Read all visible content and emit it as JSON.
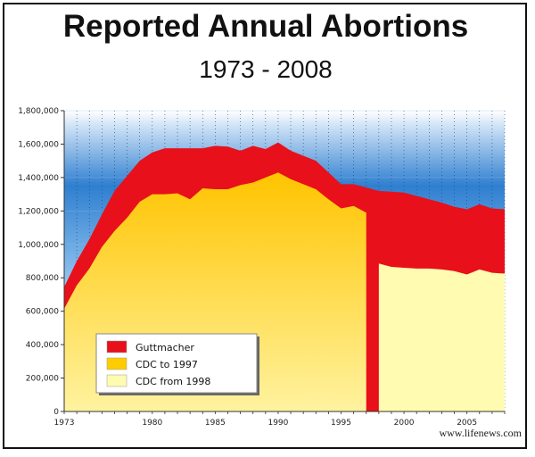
{
  "header": {
    "title": "Reported Annual Abortions",
    "subtitle": "1973 - 2008"
  },
  "credit": "www.lifenews.com",
  "colors": {
    "guttmacher": "#e8101a",
    "cdc_to_1997": "#ffcc00",
    "cdc_from_1998": "#fffbb0",
    "background_top": "#2f7fd0",
    "background_bottom": "#ffffff"
  },
  "chart_data": {
    "type": "area",
    "x": [
      1973,
      1974,
      1975,
      1976,
      1977,
      1978,
      1979,
      1980,
      1981,
      1982,
      1983,
      1984,
      1985,
      1986,
      1987,
      1988,
      1989,
      1990,
      1991,
      1992,
      1993,
      1994,
      1995,
      1996,
      1997,
      1998,
      1999,
      2000,
      2001,
      2002,
      2003,
      2004,
      2005,
      2006,
      2007,
      2008
    ],
    "series": [
      {
        "name": "Guttmacher",
        "color_key": "guttmacher",
        "values": [
          745000,
          900000,
          1030000,
          1180000,
          1320000,
          1410000,
          1500000,
          1550000,
          1575000,
          1575000,
          1575000,
          1575000,
          1590000,
          1585000,
          1560000,
          1590000,
          1570000,
          1610000,
          1560000,
          1530000,
          1500000,
          1430000,
          1360000,
          1360000,
          1340000,
          1320000,
          1315000,
          1310000,
          1290000,
          1270000,
          1250000,
          1225000,
          1210000,
          1240000,
          1215000,
          1210000
        ]
      },
      {
        "name": "CDC to 1997",
        "color_key": "cdc_to_1997",
        "values": [
          615000,
          755000,
          855000,
          985000,
          1080000,
          1160000,
          1255000,
          1300000,
          1300000,
          1305000,
          1270000,
          1335000,
          1330000,
          1330000,
          1355000,
          1370000,
          1400000,
          1430000,
          1390000,
          1360000,
          1330000,
          1270000,
          1215000,
          1230000,
          1190000,
          null,
          null,
          null,
          null,
          null,
          null,
          null,
          null,
          null,
          null,
          null
        ]
      },
      {
        "name": "CDC from 1998",
        "color_key": "cdc_from_1998",
        "values": [
          null,
          null,
          null,
          null,
          null,
          null,
          null,
          null,
          null,
          null,
          null,
          null,
          null,
          null,
          null,
          null,
          null,
          null,
          null,
          null,
          null,
          null,
          null,
          null,
          null,
          885000,
          865000,
          860000,
          855000,
          855000,
          850000,
          840000,
          820000,
          850000,
          830000,
          825000
        ]
      }
    ],
    "y_ticks": [
      "0",
      "200,000",
      "400,000",
      "600,000",
      "800,000",
      "1,000,000",
      "1,200,000",
      "1,400,000",
      "1,600,000",
      "1,800,000"
    ],
    "x_ticks": [
      "1973",
      "1980",
      "1985",
      "1990",
      "1995",
      "2000",
      "2005"
    ],
    "ylim": [
      0,
      1800000
    ],
    "xlim": [
      1973,
      2008
    ],
    "legend_position": "bottom-left",
    "grid": "vertical dotted lines"
  }
}
